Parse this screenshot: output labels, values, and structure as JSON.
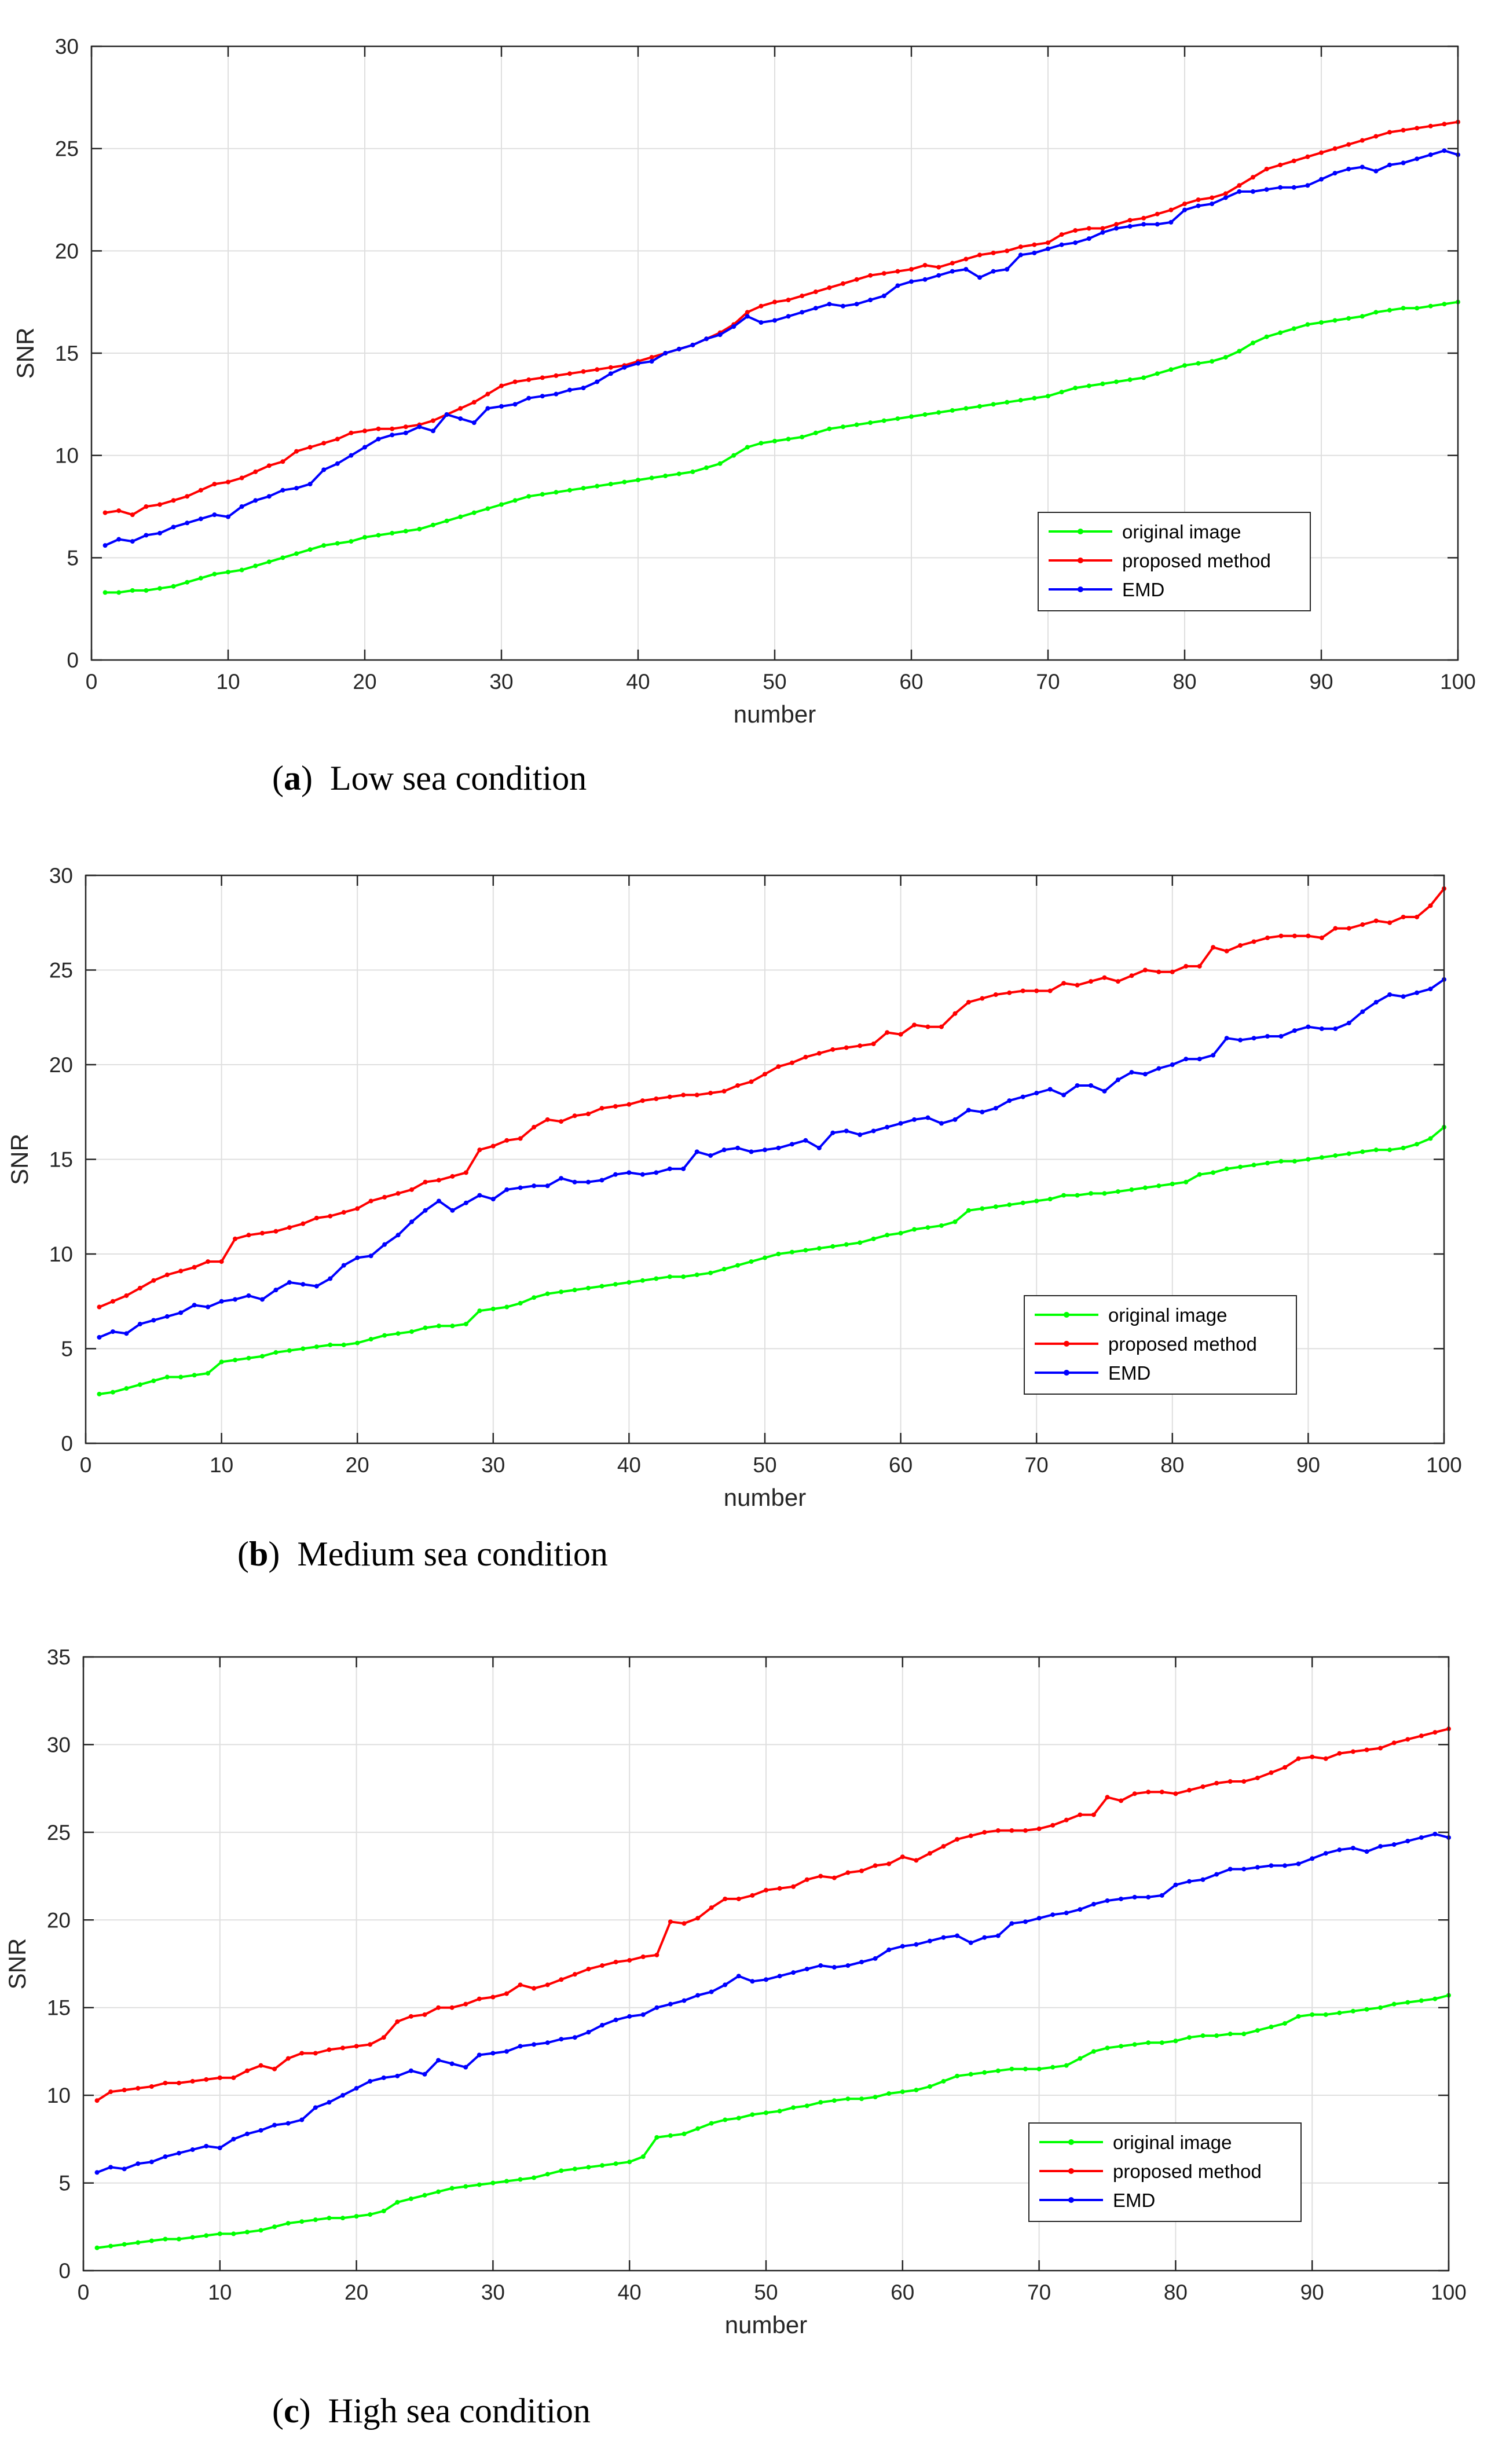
{
  "figure": {
    "panels": [
      {
        "id": "a",
        "caption_letter": "a",
        "caption_text": "Low sea condition"
      },
      {
        "id": "b",
        "caption_letter": "b",
        "caption_text": "Medium sea condition"
      },
      {
        "id": "c",
        "caption_letter": "c",
        "caption_text": "High sea condition"
      }
    ]
  },
  "chart_data": [
    {
      "id": "a",
      "type": "line",
      "title": "",
      "xlabel": "number",
      "ylabel": "SNR",
      "xlim": [
        0,
        100
      ],
      "ylim": [
        0,
        30
      ],
      "xticks": [
        0,
        10,
        20,
        30,
        40,
        50,
        60,
        70,
        80,
        90,
        100
      ],
      "yticks": [
        0,
        5,
        10,
        15,
        20,
        25,
        30
      ],
      "grid": true,
      "legend_position": "lower-right",
      "x": {
        "start": 1,
        "end": 100,
        "step": 1
      },
      "series": [
        {
          "name": "original image",
          "color": "#00ff00",
          "values": [
            3.3,
            3.3,
            3.4,
            3.4,
            3.5,
            3.6,
            3.8,
            4.0,
            4.2,
            4.3,
            4.4,
            4.6,
            4.8,
            5.0,
            5.2,
            5.4,
            5.6,
            5.7,
            5.8,
            6.0,
            6.1,
            6.2,
            6.3,
            6.4,
            6.6,
            6.8,
            7.0,
            7.2,
            7.4,
            7.6,
            7.8,
            8.0,
            8.1,
            8.2,
            8.3,
            8.4,
            8.5,
            8.6,
            8.7,
            8.8,
            8.9,
            9.0,
            9.1,
            9.2,
            9.4,
            9.6,
            10.0,
            10.4,
            10.6,
            10.7,
            10.8,
            10.9,
            11.1,
            11.3,
            11.4,
            11.5,
            11.6,
            11.7,
            11.8,
            11.9,
            12.0,
            12.1,
            12.2,
            12.3,
            12.4,
            12.5,
            12.6,
            12.7,
            12.8,
            12.9,
            13.1,
            13.3,
            13.4,
            13.5,
            13.6,
            13.7,
            13.8,
            14.0,
            14.2,
            14.4,
            14.5,
            14.6,
            14.8,
            15.1,
            15.5,
            15.8,
            16.0,
            16.2,
            16.4,
            16.5,
            16.6,
            16.7,
            16.8,
            17.0,
            17.1,
            17.2,
            17.2,
            17.3,
            17.4,
            17.5
          ]
        },
        {
          "name": "proposed method",
          "color": "#ff0000",
          "values": [
            7.2,
            7.3,
            7.1,
            7.5,
            7.6,
            7.8,
            8.0,
            8.3,
            8.6,
            8.7,
            8.9,
            9.2,
            9.5,
            9.7,
            10.2,
            10.4,
            10.6,
            10.8,
            11.1,
            11.2,
            11.3,
            11.3,
            11.4,
            11.5,
            11.7,
            12.0,
            12.3,
            12.6,
            13.0,
            13.4,
            13.6,
            13.7,
            13.8,
            13.9,
            14.0,
            14.1,
            14.2,
            14.3,
            14.4,
            14.6,
            14.8,
            15.0,
            15.2,
            15.4,
            15.7,
            16.0,
            16.4,
            17.0,
            17.3,
            17.5,
            17.6,
            17.8,
            18.0,
            18.2,
            18.4,
            18.6,
            18.8,
            18.9,
            19.0,
            19.1,
            19.3,
            19.2,
            19.4,
            19.6,
            19.8,
            19.9,
            20.0,
            20.2,
            20.3,
            20.4,
            20.8,
            21.0,
            21.1,
            21.1,
            21.3,
            21.5,
            21.6,
            21.8,
            22.0,
            22.3,
            22.5,
            22.6,
            22.8,
            23.2,
            23.6,
            24.0,
            24.2,
            24.4,
            24.6,
            24.8,
            25.0,
            25.2,
            25.4,
            25.6,
            25.8,
            25.9,
            26.0,
            26.1,
            26.2,
            26.3
          ]
        },
        {
          "name": "EMD",
          "color": "#0000ff",
          "values": [
            5.6,
            5.9,
            5.8,
            6.1,
            6.2,
            6.5,
            6.7,
            6.9,
            7.1,
            7.0,
            7.5,
            7.8,
            8.0,
            8.3,
            8.4,
            8.6,
            9.3,
            9.6,
            10.0,
            10.4,
            10.8,
            11.0,
            11.1,
            11.4,
            11.2,
            12.0,
            11.8,
            11.6,
            12.3,
            12.4,
            12.5,
            12.8,
            12.9,
            13.0,
            13.2,
            13.3,
            13.6,
            14.0,
            14.3,
            14.5,
            14.6,
            15.0,
            15.2,
            15.4,
            15.7,
            15.9,
            16.3,
            16.8,
            16.5,
            16.6,
            16.8,
            17.0,
            17.2,
            17.4,
            17.3,
            17.4,
            17.6,
            17.8,
            18.3,
            18.5,
            18.6,
            18.8,
            19.0,
            19.1,
            18.7,
            19.0,
            19.1,
            19.8,
            19.9,
            20.1,
            20.3,
            20.4,
            20.6,
            20.9,
            21.1,
            21.2,
            21.3,
            21.3,
            21.4,
            22.0,
            22.2,
            22.3,
            22.6,
            22.9,
            22.9,
            23.0,
            23.1,
            23.1,
            23.2,
            23.5,
            23.8,
            24.0,
            24.1,
            23.9,
            24.2,
            24.3,
            24.5,
            24.7,
            24.9,
            24.7
          ]
        }
      ]
    },
    {
      "id": "b",
      "type": "line",
      "title": "",
      "xlabel": "number",
      "ylabel": "SNR",
      "xlim": [
        0,
        100
      ],
      "ylim": [
        0,
        30
      ],
      "xticks": [
        0,
        10,
        20,
        30,
        40,
        50,
        60,
        70,
        80,
        90,
        100
      ],
      "yticks": [
        0,
        5,
        10,
        15,
        20,
        25,
        30
      ],
      "grid": true,
      "legend_position": "lower-right",
      "x": {
        "start": 1,
        "end": 100,
        "step": 1
      },
      "series": [
        {
          "name": "original image",
          "color": "#00ff00",
          "values": [
            2.6,
            2.7,
            2.9,
            3.1,
            3.3,
            3.5,
            3.5,
            3.6,
            3.7,
            4.3,
            4.4,
            4.5,
            4.6,
            4.8,
            4.9,
            5.0,
            5.1,
            5.2,
            5.2,
            5.3,
            5.5,
            5.7,
            5.8,
            5.9,
            6.1,
            6.2,
            6.2,
            6.3,
            7.0,
            7.1,
            7.2,
            7.4,
            7.7,
            7.9,
            8.0,
            8.1,
            8.2,
            8.3,
            8.4,
            8.5,
            8.6,
            8.7,
            8.8,
            8.8,
            8.9,
            9.0,
            9.2,
            9.4,
            9.6,
            9.8,
            10.0,
            10.1,
            10.2,
            10.3,
            10.4,
            10.5,
            10.6,
            10.8,
            11.0,
            11.1,
            11.3,
            11.4,
            11.5,
            11.7,
            12.3,
            12.4,
            12.5,
            12.6,
            12.7,
            12.8,
            12.9,
            13.1,
            13.1,
            13.2,
            13.2,
            13.3,
            13.4,
            13.5,
            13.6,
            13.7,
            13.8,
            14.2,
            14.3,
            14.5,
            14.6,
            14.7,
            14.8,
            14.9,
            14.9,
            15.0,
            15.1,
            15.2,
            15.3,
            15.4,
            15.5,
            15.5,
            15.6,
            15.8,
            16.1,
            16.7
          ]
        },
        {
          "name": "proposed method",
          "color": "#ff0000",
          "values": [
            7.2,
            7.5,
            7.8,
            8.2,
            8.6,
            8.9,
            9.1,
            9.3,
            9.6,
            9.6,
            10.8,
            11.0,
            11.1,
            11.2,
            11.4,
            11.6,
            11.9,
            12.0,
            12.2,
            12.4,
            12.8,
            13.0,
            13.2,
            13.4,
            13.8,
            13.9,
            14.1,
            14.3,
            15.5,
            15.7,
            16.0,
            16.1,
            16.7,
            17.1,
            17.0,
            17.3,
            17.4,
            17.7,
            17.8,
            17.9,
            18.1,
            18.2,
            18.3,
            18.4,
            18.4,
            18.5,
            18.6,
            18.9,
            19.1,
            19.5,
            19.9,
            20.1,
            20.4,
            20.6,
            20.8,
            20.9,
            21.0,
            21.1,
            21.7,
            21.6,
            22.1,
            22.0,
            22.0,
            22.7,
            23.3,
            23.5,
            23.7,
            23.8,
            23.9,
            23.9,
            23.9,
            24.3,
            24.2,
            24.4,
            24.6,
            24.4,
            24.7,
            25.0,
            24.9,
            24.9,
            25.2,
            25.2,
            26.2,
            26.0,
            26.3,
            26.5,
            26.7,
            26.8,
            26.8,
            26.8,
            26.7,
            27.2,
            27.2,
            27.4,
            27.6,
            27.5,
            27.8,
            27.8,
            28.4,
            29.3
          ]
        },
        {
          "name": "EMD",
          "color": "#0000ff",
          "values": [
            5.6,
            5.9,
            5.8,
            6.3,
            6.5,
            6.7,
            6.9,
            7.3,
            7.2,
            7.5,
            7.6,
            7.8,
            7.6,
            8.1,
            8.5,
            8.4,
            8.3,
            8.7,
            9.4,
            9.8,
            9.9,
            10.5,
            11.0,
            11.7,
            12.3,
            12.8,
            12.3,
            12.7,
            13.1,
            12.9,
            13.4,
            13.5,
            13.6,
            13.6,
            14.0,
            13.8,
            13.8,
            13.9,
            14.2,
            14.3,
            14.2,
            14.3,
            14.5,
            14.5,
            15.4,
            15.2,
            15.5,
            15.6,
            15.4,
            15.5,
            15.6,
            15.8,
            16.0,
            15.6,
            16.4,
            16.5,
            16.3,
            16.5,
            16.7,
            16.9,
            17.1,
            17.2,
            16.9,
            17.1,
            17.6,
            17.5,
            17.7,
            18.1,
            18.3,
            18.5,
            18.7,
            18.4,
            18.9,
            18.9,
            18.6,
            19.2,
            19.6,
            19.5,
            19.8,
            20.0,
            20.3,
            20.3,
            20.5,
            21.4,
            21.3,
            21.4,
            21.5,
            21.5,
            21.8,
            22.0,
            21.9,
            21.9,
            22.2,
            22.8,
            23.3,
            23.7,
            23.6,
            23.8,
            24.0,
            24.5
          ]
        }
      ]
    },
    {
      "id": "c",
      "type": "line",
      "title": "",
      "xlabel": "number",
      "ylabel": "SNR",
      "xlim": [
        0,
        100
      ],
      "ylim": [
        0,
        35
      ],
      "xticks": [
        0,
        10,
        20,
        30,
        40,
        50,
        60,
        70,
        80,
        90,
        100
      ],
      "yticks": [
        0,
        5,
        10,
        15,
        20,
        25,
        30,
        35
      ],
      "grid": true,
      "legend_position": "lower-right",
      "x": {
        "start": 1,
        "end": 100,
        "step": 1
      },
      "series": [
        {
          "name": "original image",
          "color": "#00ff00",
          "values": [
            1.3,
            1.4,
            1.5,
            1.6,
            1.7,
            1.8,
            1.8,
            1.9,
            2.0,
            2.1,
            2.1,
            2.2,
            2.3,
            2.5,
            2.7,
            2.8,
            2.9,
            3.0,
            3.0,
            3.1,
            3.2,
            3.4,
            3.9,
            4.1,
            4.3,
            4.5,
            4.7,
            4.8,
            4.9,
            5.0,
            5.1,
            5.2,
            5.3,
            5.5,
            5.7,
            5.8,
            5.9,
            6.0,
            6.1,
            6.2,
            6.5,
            7.6,
            7.7,
            7.8,
            8.1,
            8.4,
            8.6,
            8.7,
            8.9,
            9.0,
            9.1,
            9.3,
            9.4,
            9.6,
            9.7,
            9.8,
            9.8,
            9.9,
            10.1,
            10.2,
            10.3,
            10.5,
            10.8,
            11.1,
            11.2,
            11.3,
            11.4,
            11.5,
            11.5,
            11.5,
            11.6,
            11.7,
            12.1,
            12.5,
            12.7,
            12.8,
            12.9,
            13.0,
            13.0,
            13.1,
            13.3,
            13.4,
            13.4,
            13.5,
            13.5,
            13.7,
            13.9,
            14.1,
            14.5,
            14.6,
            14.6,
            14.7,
            14.8,
            14.9,
            15.0,
            15.2,
            15.3,
            15.4,
            15.5,
            15.7
          ]
        },
        {
          "name": "proposed method",
          "color": "#ff0000",
          "values": [
            9.7,
            10.2,
            10.3,
            10.4,
            10.5,
            10.7,
            10.7,
            10.8,
            10.9,
            11.0,
            11.0,
            11.4,
            11.7,
            11.5,
            12.1,
            12.4,
            12.4,
            12.6,
            12.7,
            12.8,
            12.9,
            13.3,
            14.2,
            14.5,
            14.6,
            15.0,
            15.0,
            15.2,
            15.5,
            15.6,
            15.8,
            16.3,
            16.1,
            16.3,
            16.6,
            16.9,
            17.2,
            17.4,
            17.6,
            17.7,
            17.9,
            18.0,
            19.9,
            19.8,
            20.1,
            20.7,
            21.2,
            21.2,
            21.4,
            21.7,
            21.8,
            21.9,
            22.3,
            22.5,
            22.4,
            22.7,
            22.8,
            23.1,
            23.2,
            23.6,
            23.4,
            23.8,
            24.2,
            24.6,
            24.8,
            25.0,
            25.1,
            25.1,
            25.1,
            25.2,
            25.4,
            25.7,
            26.0,
            26.0,
            27.0,
            26.8,
            27.2,
            27.3,
            27.3,
            27.2,
            27.4,
            27.6,
            27.8,
            27.9,
            27.9,
            28.1,
            28.4,
            28.7,
            29.2,
            29.3,
            29.2,
            29.5,
            29.6,
            29.7,
            29.8,
            30.1,
            30.3,
            30.5,
            30.7,
            30.9
          ]
        },
        {
          "name": "EMD",
          "color": "#0000ff",
          "values": [
            5.6,
            5.9,
            5.8,
            6.1,
            6.2,
            6.5,
            6.7,
            6.9,
            7.1,
            7.0,
            7.5,
            7.8,
            8.0,
            8.3,
            8.4,
            8.6,
            9.3,
            9.6,
            10.0,
            10.4,
            10.8,
            11.0,
            11.1,
            11.4,
            11.2,
            12.0,
            11.8,
            11.6,
            12.3,
            12.4,
            12.5,
            12.8,
            12.9,
            13.0,
            13.2,
            13.3,
            13.6,
            14.0,
            14.3,
            14.5,
            14.6,
            15.0,
            15.2,
            15.4,
            15.7,
            15.9,
            16.3,
            16.8,
            16.5,
            16.6,
            16.8,
            17.0,
            17.2,
            17.4,
            17.3,
            17.4,
            17.6,
            17.8,
            18.3,
            18.5,
            18.6,
            18.8,
            19.0,
            19.1,
            18.7,
            19.0,
            19.1,
            19.8,
            19.9,
            20.1,
            20.3,
            20.4,
            20.6,
            20.9,
            21.1,
            21.2,
            21.3,
            21.3,
            21.4,
            22.0,
            22.2,
            22.3,
            22.6,
            22.9,
            22.9,
            23.0,
            23.1,
            23.1,
            23.2,
            23.5,
            23.8,
            24.0,
            24.1,
            23.9,
            24.2,
            24.3,
            24.5,
            24.7,
            24.9,
            24.7
          ]
        }
      ]
    }
  ]
}
